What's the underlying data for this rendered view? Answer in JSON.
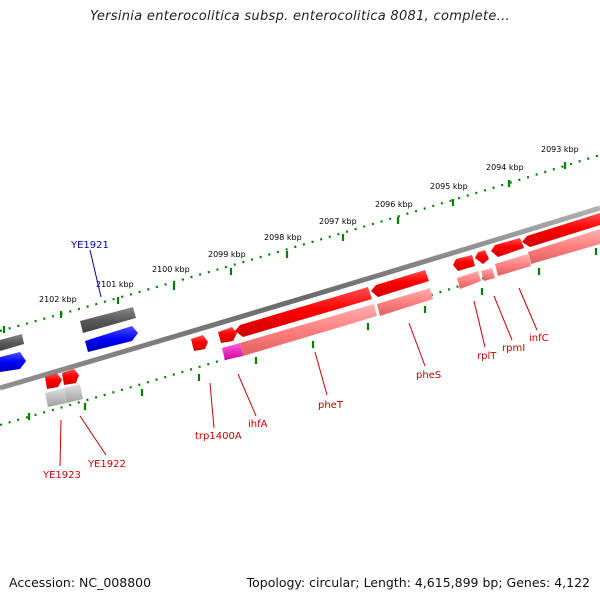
{
  "title": "Yersinia enterocolitica subsp. enterocolitica 8081, complete...",
  "footer": {
    "accession": "Accession: NC_008800",
    "stats": "Topology: circular; Length: 4,615,899 bp; Genes: 4,122"
  },
  "scale_labels": [
    "2093 kbp",
    "2094 kbp",
    "2095 kbp",
    "2096 kbp",
    "2097 kbp",
    "2098 kbp",
    "2099 kbp",
    "2100 kbp",
    "2101 kbp",
    "2102 kbp"
  ],
  "gene_labels": [
    "YE1921",
    "YE1923",
    "YE1922",
    "trp1400A",
    "ihfA",
    "pheT",
    "pheS",
    "rplT",
    "rpmI",
    "infC"
  ],
  "colors": {
    "forward_gene": "#ff0000",
    "forward_gene_light": "#ff8080",
    "backbone": "#707070",
    "hypothetical_gene": "#606060",
    "blue_gene": "#0000ff",
    "trna_gene": "#ff00cc",
    "scale_tick": "#008000",
    "label_red": "#cc0000",
    "label_blue": "#0000bb"
  }
}
